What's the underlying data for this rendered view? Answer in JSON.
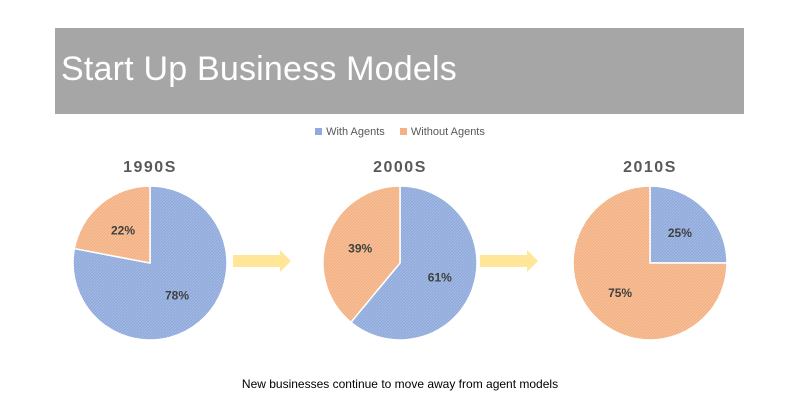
{
  "banner": {
    "title": "Start Up Business Models"
  },
  "legend": [
    {
      "label": "With Agents",
      "color": "#8faadc"
    },
    {
      "label": "Without Agents",
      "color": "#f4b183"
    }
  ],
  "chart_data": [
    {
      "type": "pie",
      "title": "1990S",
      "categories": [
        "With Agents",
        "Without Agents"
      ],
      "values": [
        78,
        22
      ],
      "labels": [
        "78%",
        "22%"
      ]
    },
    {
      "type": "pie",
      "title": "2000S",
      "categories": [
        "With Agents",
        "Without Agents"
      ],
      "values": [
        61,
        39
      ],
      "labels": [
        "61%",
        "39%"
      ]
    },
    {
      "type": "pie",
      "title": "2010S",
      "categories": [
        "With Agents",
        "Without Agents"
      ],
      "values": [
        25,
        75
      ],
      "labels": [
        "25%",
        "75%"
      ]
    }
  ],
  "colors": {
    "with_agents": "#8faadc",
    "without_agents": "#f4b183",
    "arrow": "#ffe699",
    "banner": "#a6a6a6"
  },
  "footer": {
    "caption": "New businesses continue to move away from agent models"
  }
}
